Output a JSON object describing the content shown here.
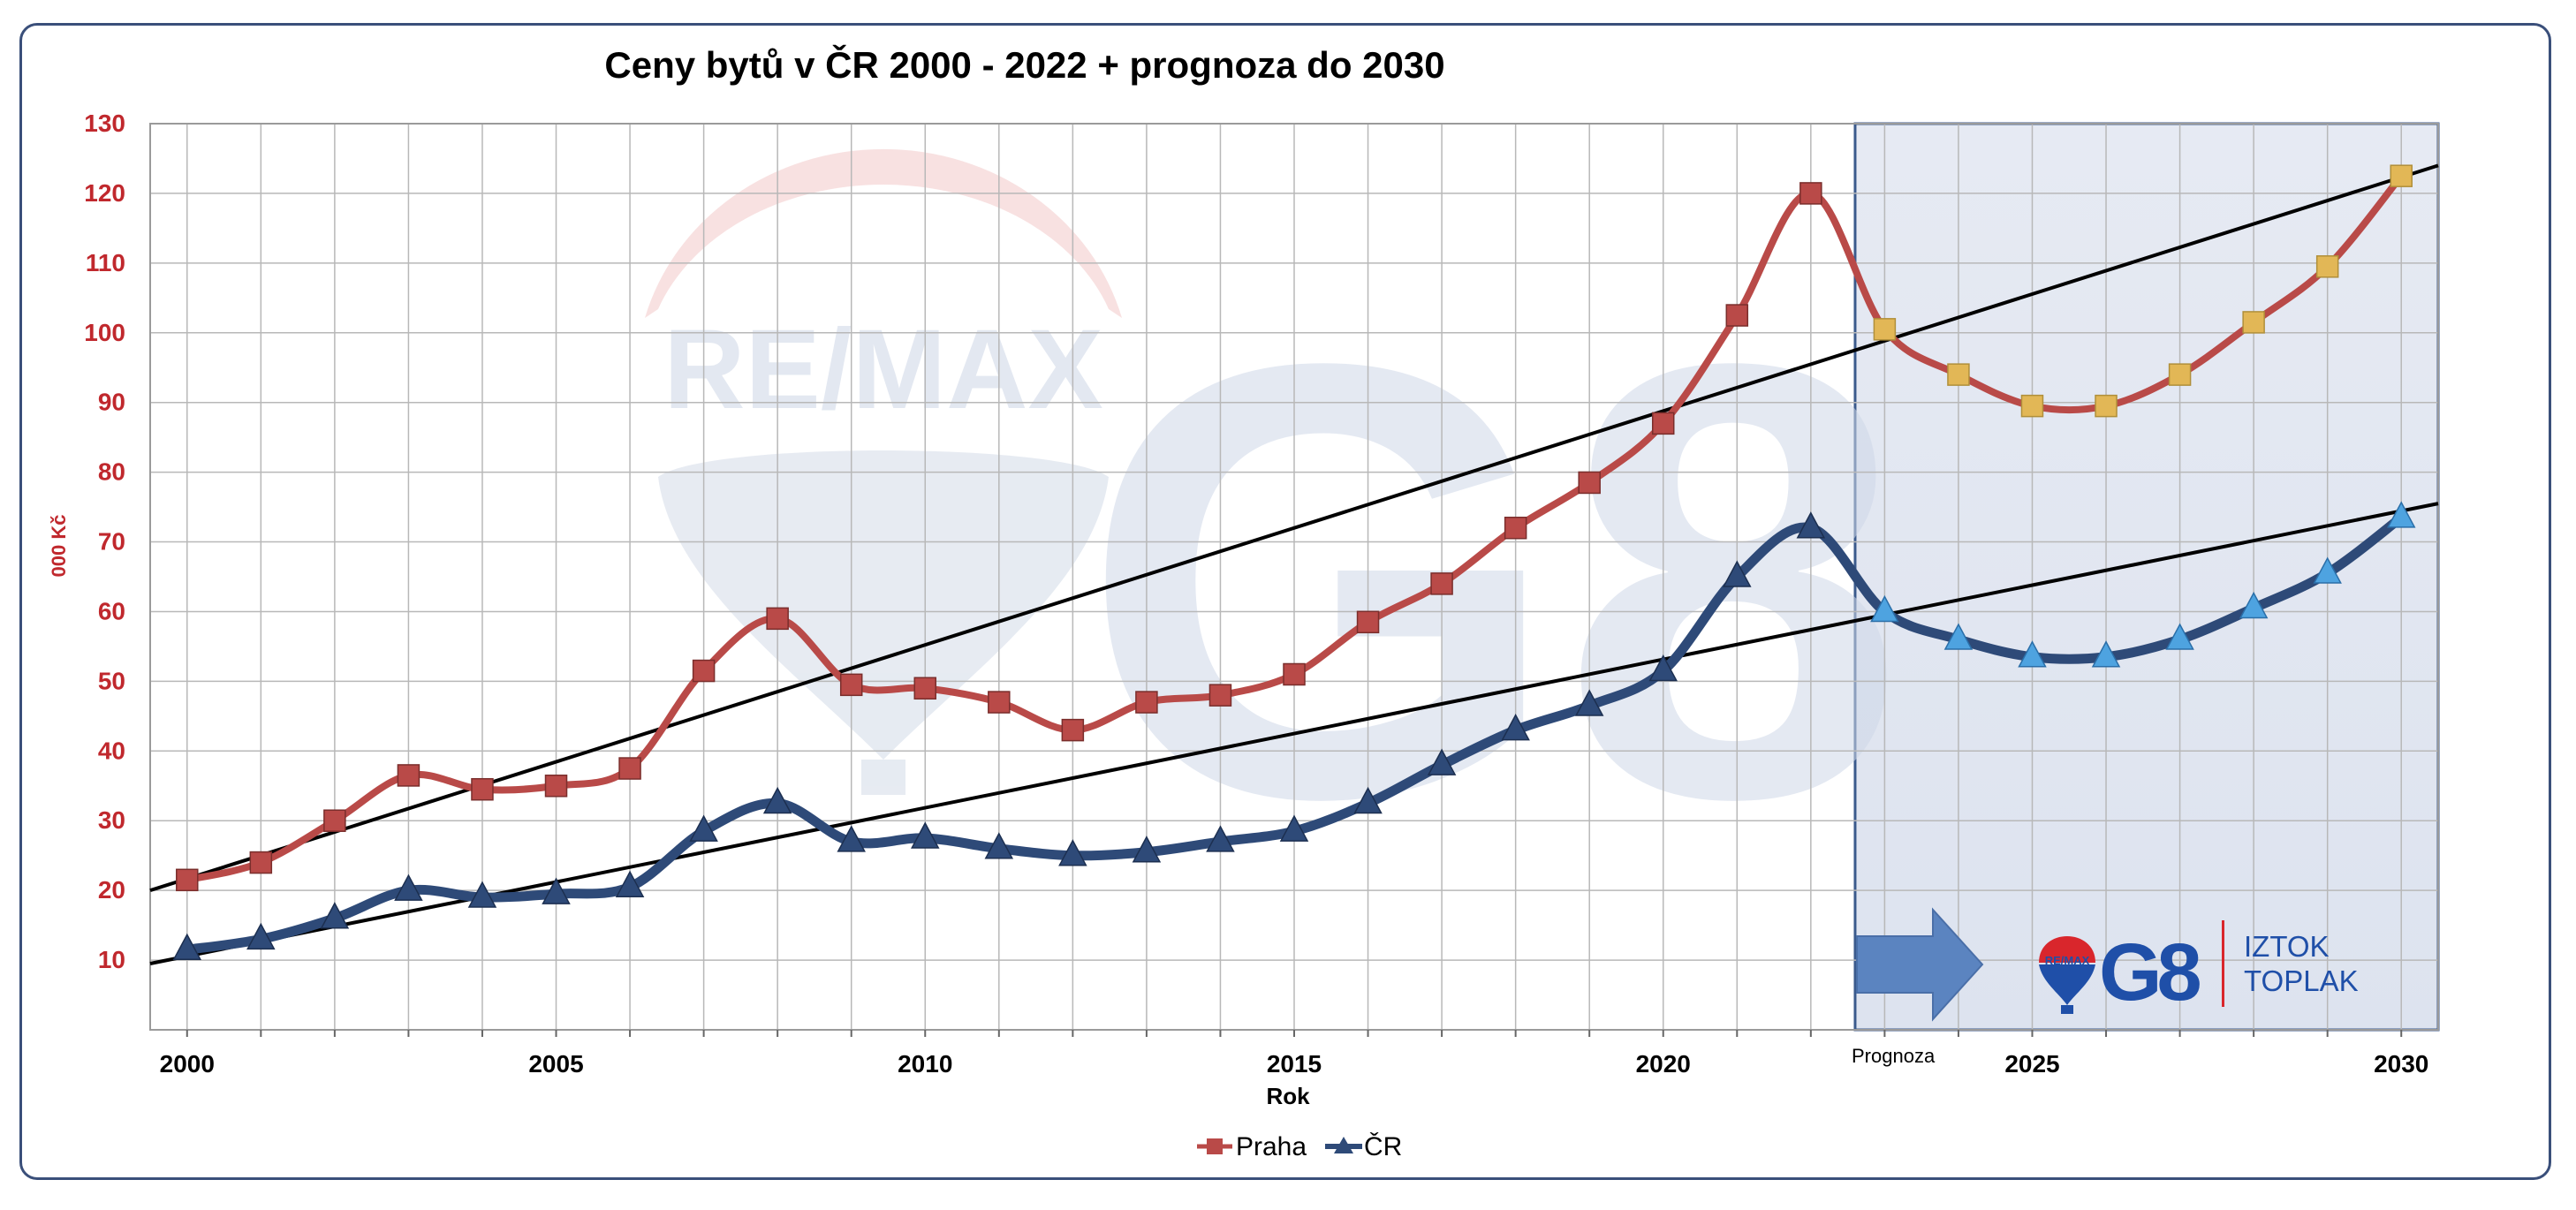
{
  "chart_data": {
    "type": "line",
    "title": "Ceny bytů v ČR 2000 - 2022 + prognoza do 2030",
    "xlabel": "Rok",
    "ylabel": "000 Kč",
    "x": [
      2000,
      2001,
      2002,
      2003,
      2004,
      2005,
      2006,
      2007,
      2008,
      2009,
      2010,
      2011,
      2012,
      2013,
      2014,
      2015,
      2016,
      2017,
      2018,
      2019,
      2020,
      2021,
      2022,
      2023,
      2024,
      2025,
      2026,
      2027,
      2028,
      2029,
      2030
    ],
    "xlim": [
      1999.5,
      2030.5
    ],
    "ylim": [
      0,
      130
    ],
    "y_ticks": [
      10,
      20,
      30,
      40,
      50,
      60,
      70,
      80,
      90,
      100,
      110,
      120,
      130
    ],
    "x_tick_labels": [
      "2000",
      "2005",
      "2010",
      "2015",
      "2020",
      "2025",
      "2030"
    ],
    "forecast_start": 2022.6,
    "forecast_label": "Prognoza",
    "grid": true,
    "legend_position": "bottom",
    "series": [
      {
        "name": "Praha",
        "color": "#b94a48",
        "forecast_marker_color": "#e2b756",
        "marker": "square",
        "values": [
          21.5,
          24,
          30,
          36.5,
          34.5,
          35,
          37.5,
          51.5,
          59,
          49.5,
          49,
          47,
          43,
          47,
          48,
          51,
          58.5,
          64,
          72,
          78.5,
          87,
          102.5,
          120,
          100.5,
          94,
          89.5,
          89.5,
          94,
          101.5,
          109.5,
          122.5
        ]
      },
      {
        "name": "ČR",
        "color": "#2e4a78",
        "forecast_marker_color": "#4ea3e0",
        "marker": "triangle",
        "values": [
          11.5,
          13,
          16,
          20,
          19,
          19.5,
          20.5,
          28.5,
          32.5,
          27,
          27.5,
          26,
          25,
          25.5,
          27,
          28.5,
          32.5,
          38,
          43,
          46.5,
          51.5,
          65,
          72,
          60,
          56,
          53.5,
          53.5,
          56,
          60.5,
          65.5,
          73.5
        ]
      }
    ],
    "trendlines": [
      {
        "color": "#000000",
        "from": [
          1999.5,
          20
        ],
        "to": [
          2030.5,
          124
        ]
      },
      {
        "color": "#000000",
        "from": [
          1999.5,
          9.5
        ],
        "to": [
          2030.5,
          75.5
        ]
      }
    ]
  },
  "logo": {
    "remax_text": "RE/MAX",
    "g8_text": "G8",
    "agent_name_line1": "IZTOK",
    "agent_name_line2": "TOPLAK",
    "brand_blue": "#1f4fa8",
    "brand_red": "#d9262c"
  },
  "colors": {
    "axis_text": "#c0282d",
    "forecast_bg": "#e3e8f2",
    "forecast_border": "#3b5a8c",
    "arrow": "#5b84c0",
    "grid": "#b8b8b8"
  }
}
